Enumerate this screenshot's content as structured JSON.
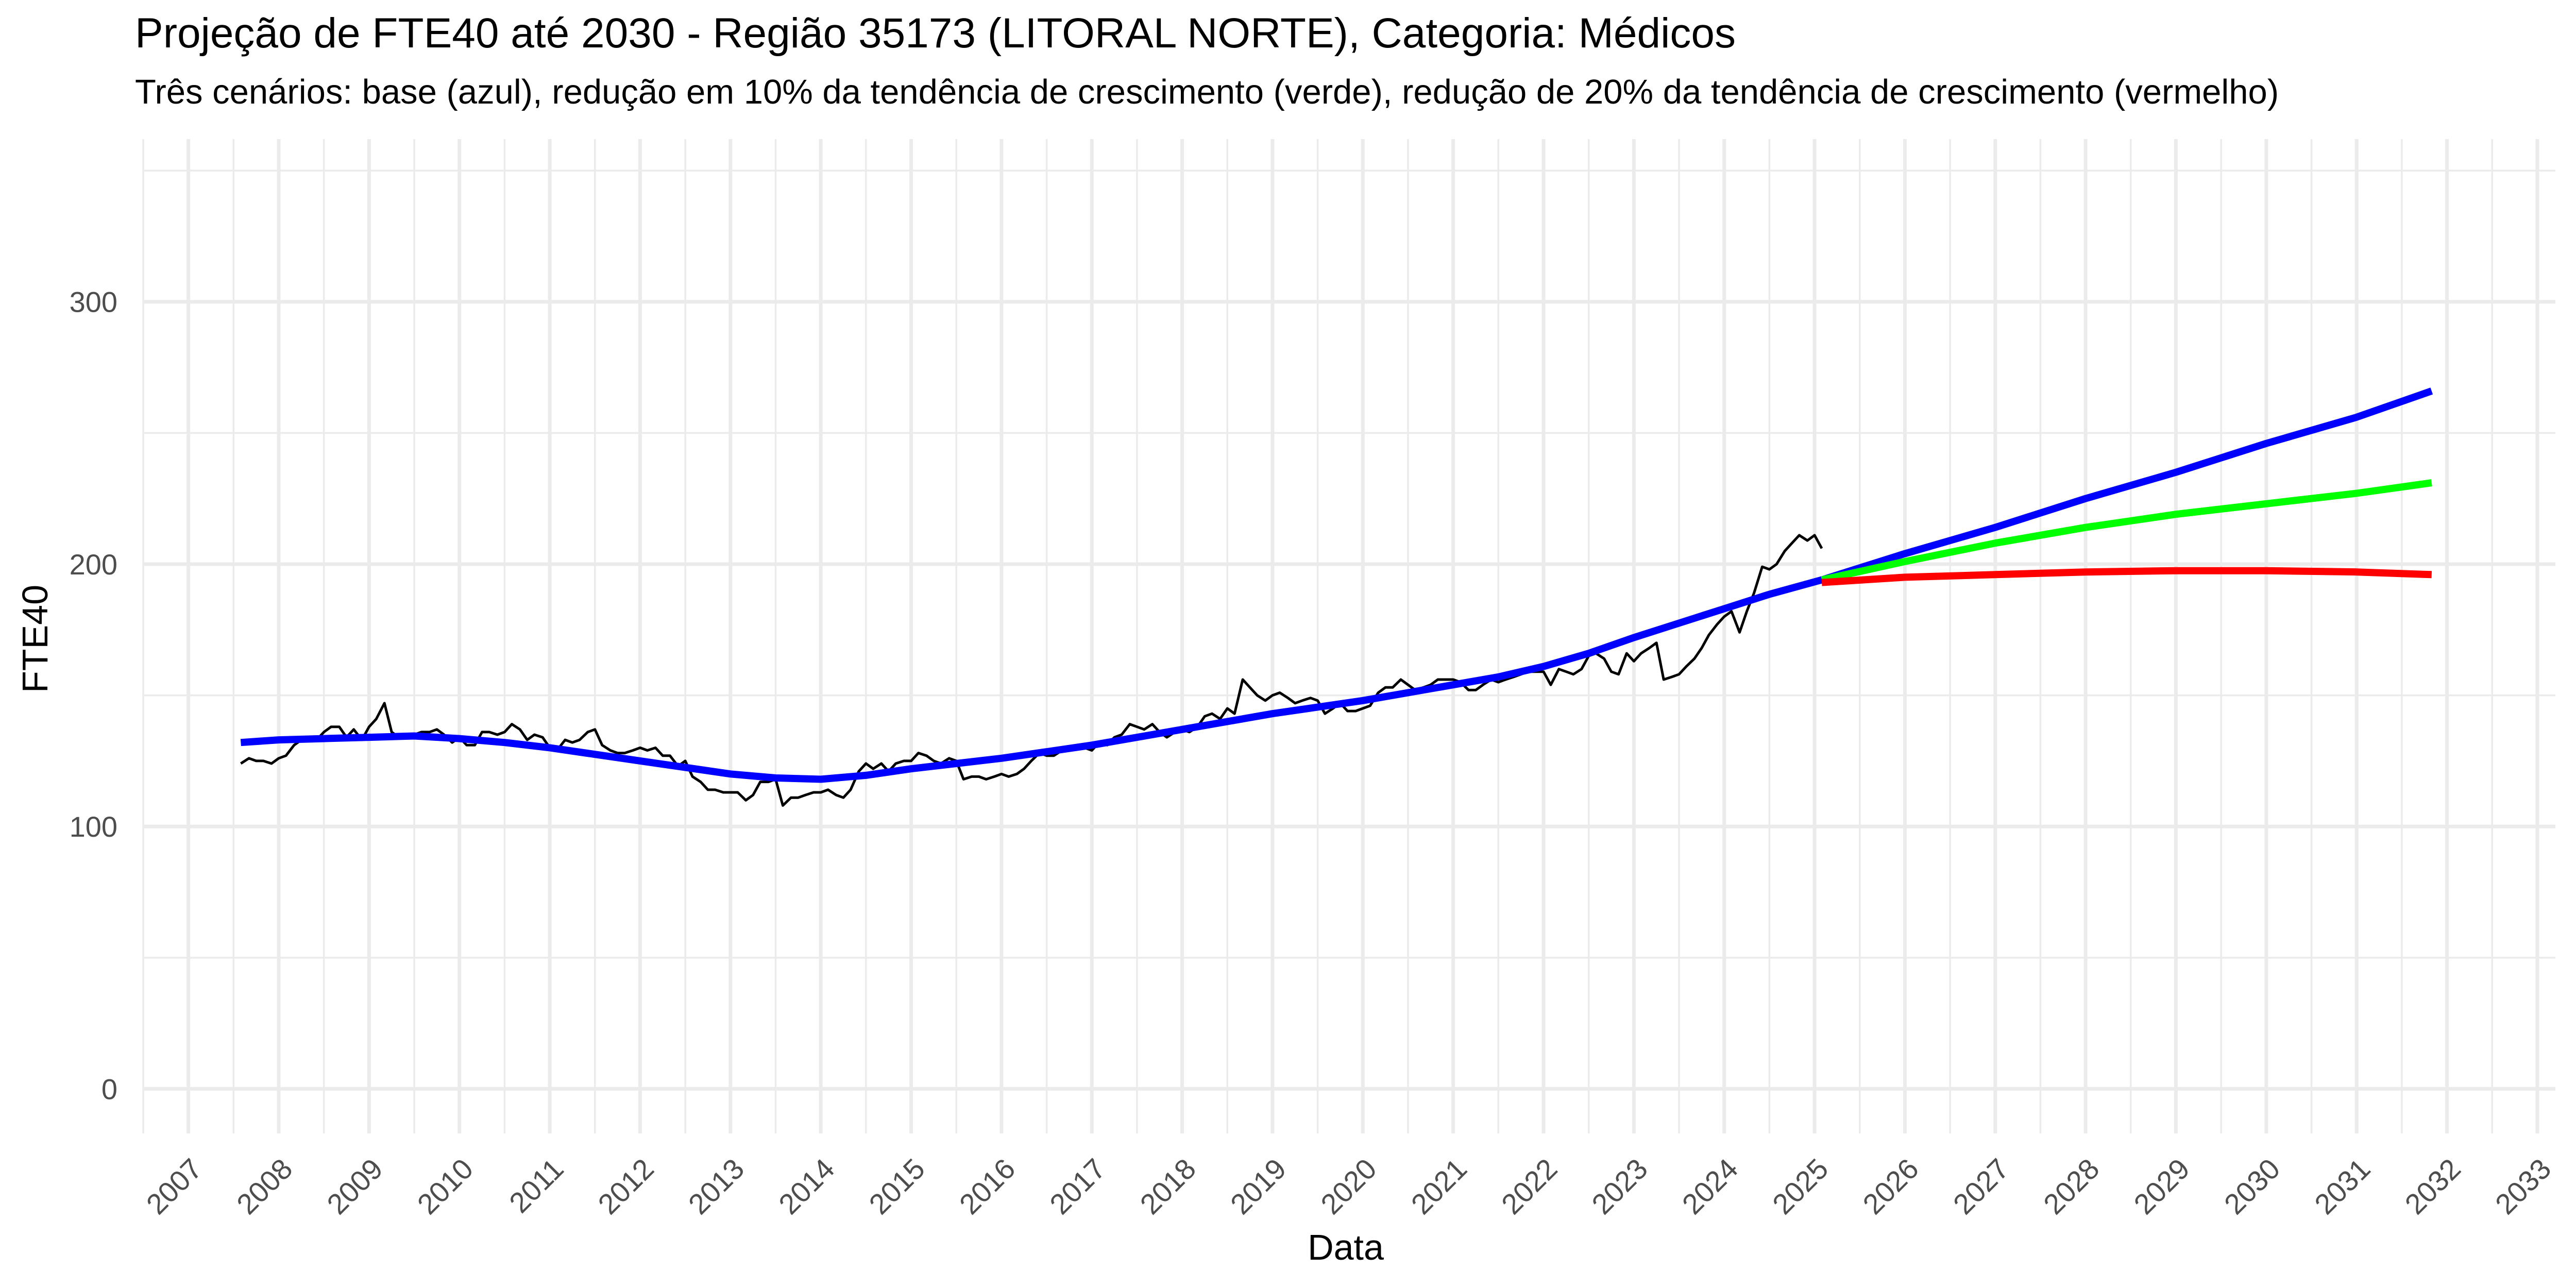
{
  "chart_data": {
    "type": "line",
    "title": "Projeção de FTE40 até 2030 - Região 35173 (LITORAL NORTE), Categoria: Médicos",
    "subtitle": "Três cenários: base (azul), redução em 10% da tendência de crescimento (verde), redução de 20% da tendência de crescimento (vermelho)",
    "xlabel": "Data",
    "ylabel": "FTE40",
    "x_ticks": [
      "2007",
      "2008",
      "2009",
      "2010",
      "2011",
      "2012",
      "2013",
      "2014",
      "2015",
      "2016",
      "2017",
      "2018",
      "2019",
      "2020",
      "2021",
      "2022",
      "2023",
      "2024",
      "2025",
      "2026",
      "2027",
      "2028",
      "2029",
      "2030",
      "2031",
      "2032",
      "2033"
    ],
    "y_ticks": [
      "0",
      "100",
      "200",
      "300"
    ],
    "xlim": [
      2006.5,
      2033.2
    ],
    "ylim": [
      -17,
      362
    ],
    "grid": true,
    "legend": "none",
    "colors": {
      "observed": "#000000",
      "base": "#0000ff",
      "reduction_10": "#00ff00",
      "reduction_20": "#ff0000",
      "grid": "#ebebeb"
    },
    "series": [
      {
        "key": "observed",
        "width": 5,
        "points": [
          [
            2007.58,
            124
          ],
          [
            2007.67,
            126
          ],
          [
            2007.75,
            125
          ],
          [
            2007.83,
            125
          ],
          [
            2007.92,
            124
          ],
          [
            2008.0,
            126
          ],
          [
            2008.08,
            127
          ],
          [
            2008.17,
            131
          ],
          [
            2008.25,
            133
          ],
          [
            2008.33,
            134
          ],
          [
            2008.42,
            133
          ],
          [
            2008.5,
            136
          ],
          [
            2008.58,
            138
          ],
          [
            2008.67,
            138
          ],
          [
            2008.75,
            134
          ],
          [
            2008.83,
            137
          ],
          [
            2008.92,
            133
          ],
          [
            2009.0,
            138
          ],
          [
            2009.08,
            141
          ],
          [
            2009.17,
            147
          ],
          [
            2009.25,
            136
          ],
          [
            2009.33,
            134
          ],
          [
            2009.42,
            135
          ],
          [
            2009.5,
            135
          ],
          [
            2009.58,
            136
          ],
          [
            2009.67,
            136
          ],
          [
            2009.75,
            137
          ],
          [
            2009.83,
            135
          ],
          [
            2009.92,
            132
          ],
          [
            2010.0,
            134
          ],
          [
            2010.08,
            131
          ],
          [
            2010.17,
            131
          ],
          [
            2010.25,
            136
          ],
          [
            2010.33,
            136
          ],
          [
            2010.42,
            135
          ],
          [
            2010.5,
            136
          ],
          [
            2010.58,
            139
          ],
          [
            2010.67,
            137
          ],
          [
            2010.75,
            133
          ],
          [
            2010.83,
            135
          ],
          [
            2010.92,
            134
          ],
          [
            2011.0,
            130
          ],
          [
            2011.08,
            129
          ],
          [
            2011.17,
            133
          ],
          [
            2011.25,
            132
          ],
          [
            2011.33,
            133
          ],
          [
            2011.42,
            136
          ],
          [
            2011.5,
            137
          ],
          [
            2011.58,
            131
          ],
          [
            2011.67,
            129
          ],
          [
            2011.75,
            128
          ],
          [
            2011.83,
            128
          ],
          [
            2011.92,
            129
          ],
          [
            2012.0,
            130
          ],
          [
            2012.08,
            129
          ],
          [
            2012.17,
            130
          ],
          [
            2012.25,
            127
          ],
          [
            2012.33,
            127
          ],
          [
            2012.42,
            123
          ],
          [
            2012.5,
            125
          ],
          [
            2012.58,
            119
          ],
          [
            2012.67,
            117
          ],
          [
            2012.75,
            114
          ],
          [
            2012.83,
            114
          ],
          [
            2012.92,
            113
          ],
          [
            2013.0,
            113
          ],
          [
            2013.08,
            113
          ],
          [
            2013.17,
            110
          ],
          [
            2013.25,
            112
          ],
          [
            2013.33,
            117
          ],
          [
            2013.42,
            117
          ],
          [
            2013.5,
            118
          ],
          [
            2013.58,
            108
          ],
          [
            2013.67,
            111
          ],
          [
            2013.75,
            111
          ],
          [
            2013.83,
            112
          ],
          [
            2013.92,
            113
          ],
          [
            2014.0,
            113
          ],
          [
            2014.08,
            114
          ],
          [
            2014.17,
            112
          ],
          [
            2014.25,
            111
          ],
          [
            2014.33,
            114
          ],
          [
            2014.42,
            121
          ],
          [
            2014.5,
            124
          ],
          [
            2014.58,
            122
          ],
          [
            2014.67,
            124
          ],
          [
            2014.75,
            121
          ],
          [
            2014.83,
            124
          ],
          [
            2014.92,
            125
          ],
          [
            2015.0,
            125
          ],
          [
            2015.08,
            128
          ],
          [
            2015.17,
            127
          ],
          [
            2015.25,
            125
          ],
          [
            2015.33,
            124
          ],
          [
            2015.42,
            126
          ],
          [
            2015.5,
            125
          ],
          [
            2015.58,
            118
          ],
          [
            2015.67,
            119
          ],
          [
            2015.75,
            119
          ],
          [
            2015.83,
            118
          ],
          [
            2015.92,
            119
          ],
          [
            2016.0,
            120
          ],
          [
            2016.08,
            119
          ],
          [
            2016.17,
            120
          ],
          [
            2016.25,
            122
          ],
          [
            2016.33,
            125
          ],
          [
            2016.42,
            128
          ],
          [
            2016.5,
            127
          ],
          [
            2016.58,
            127
          ],
          [
            2016.67,
            129
          ],
          [
            2016.75,
            129
          ],
          [
            2016.83,
            130
          ],
          [
            2016.92,
            130
          ],
          [
            2017.0,
            129
          ],
          [
            2017.08,
            132
          ],
          [
            2017.17,
            131
          ],
          [
            2017.25,
            134
          ],
          [
            2017.33,
            135
          ],
          [
            2017.42,
            139
          ],
          [
            2017.5,
            138
          ],
          [
            2017.58,
            137
          ],
          [
            2017.67,
            139
          ],
          [
            2017.75,
            136
          ],
          [
            2017.83,
            134
          ],
          [
            2017.92,
            136
          ],
          [
            2018.0,
            137
          ],
          [
            2018.08,
            136
          ],
          [
            2018.17,
            138
          ],
          [
            2018.25,
            142
          ],
          [
            2018.33,
            143
          ],
          [
            2018.42,
            141
          ],
          [
            2018.5,
            145
          ],
          [
            2018.58,
            143
          ],
          [
            2018.67,
            156
          ],
          [
            2018.75,
            153
          ],
          [
            2018.83,
            150
          ],
          [
            2018.92,
            148
          ],
          [
            2019.0,
            150
          ],
          [
            2019.08,
            151
          ],
          [
            2019.17,
            149
          ],
          [
            2019.25,
            147
          ],
          [
            2019.33,
            148
          ],
          [
            2019.42,
            149
          ],
          [
            2019.5,
            148
          ],
          [
            2019.58,
            143
          ],
          [
            2019.67,
            145
          ],
          [
            2019.75,
            147
          ],
          [
            2019.83,
            144
          ],
          [
            2019.92,
            144
          ],
          [
            2020.0,
            145
          ],
          [
            2020.08,
            146
          ],
          [
            2020.17,
            151
          ],
          [
            2020.25,
            153
          ],
          [
            2020.33,
            153
          ],
          [
            2020.42,
            156
          ],
          [
            2020.5,
            154
          ],
          [
            2020.58,
            152
          ],
          [
            2020.67,
            153
          ],
          [
            2020.75,
            154
          ],
          [
            2020.83,
            156
          ],
          [
            2020.92,
            156
          ],
          [
            2021.0,
            156
          ],
          [
            2021.08,
            155
          ],
          [
            2021.17,
            152
          ],
          [
            2021.25,
            152
          ],
          [
            2021.33,
            154
          ],
          [
            2021.42,
            156
          ],
          [
            2021.5,
            155
          ],
          [
            2021.58,
            156
          ],
          [
            2021.67,
            157
          ],
          [
            2021.75,
            158
          ],
          [
            2021.83,
            159
          ],
          [
            2021.92,
            159
          ],
          [
            2022.0,
            159
          ],
          [
            2022.08,
            154
          ],
          [
            2022.17,
            160
          ],
          [
            2022.25,
            159
          ],
          [
            2022.33,
            158
          ],
          [
            2022.42,
            160
          ],
          [
            2022.5,
            165
          ],
          [
            2022.58,
            166
          ],
          [
            2022.67,
            164
          ],
          [
            2022.75,
            159
          ],
          [
            2022.83,
            158
          ],
          [
            2022.92,
            166
          ],
          [
            2023.0,
            163
          ],
          [
            2023.08,
            166
          ],
          [
            2023.17,
            168
          ],
          [
            2023.25,
            170
          ],
          [
            2023.33,
            156
          ],
          [
            2023.42,
            157
          ],
          [
            2023.5,
            158
          ],
          [
            2023.58,
            161
          ],
          [
            2023.67,
            164
          ],
          [
            2023.75,
            168
          ],
          [
            2023.83,
            173
          ],
          [
            2023.92,
            177
          ],
          [
            2024.0,
            180
          ],
          [
            2024.08,
            182
          ],
          [
            2024.17,
            174
          ],
          [
            2024.25,
            182
          ],
          [
            2024.33,
            189
          ],
          [
            2024.42,
            199
          ],
          [
            2024.5,
            198
          ],
          [
            2024.58,
            200
          ],
          [
            2024.67,
            205
          ],
          [
            2024.75,
            208
          ],
          [
            2024.83,
            211
          ],
          [
            2024.92,
            209
          ],
          [
            2025.0,
            211
          ],
          [
            2025.08,
            206
          ]
        ]
      },
      {
        "key": "base",
        "width": 14,
        "points": [
          [
            2007.58,
            132
          ],
          [
            2008.0,
            133
          ],
          [
            2008.5,
            133.5
          ],
          [
            2009.0,
            134
          ],
          [
            2009.5,
            134.5
          ],
          [
            2010.0,
            133.5
          ],
          [
            2010.5,
            132
          ],
          [
            2011.0,
            130
          ],
          [
            2011.5,
            127.5
          ],
          [
            2012.0,
            125
          ],
          [
            2012.5,
            122.5
          ],
          [
            2013.0,
            120
          ],
          [
            2013.5,
            118.5
          ],
          [
            2014.0,
            118
          ],
          [
            2014.5,
            119.5
          ],
          [
            2015.0,
            122
          ],
          [
            2015.5,
            124
          ],
          [
            2016.0,
            126
          ],
          [
            2016.5,
            128.5
          ],
          [
            2017.0,
            131
          ],
          [
            2017.5,
            134
          ],
          [
            2018.0,
            137
          ],
          [
            2018.5,
            140
          ],
          [
            2019.0,
            143
          ],
          [
            2019.5,
            145.5
          ],
          [
            2020.0,
            148
          ],
          [
            2020.5,
            151
          ],
          [
            2021.0,
            154
          ],
          [
            2021.5,
            157
          ],
          [
            2022.0,
            161
          ],
          [
            2022.5,
            166
          ],
          [
            2023.0,
            172
          ],
          [
            2023.5,
            177.5
          ],
          [
            2024.0,
            183
          ],
          [
            2024.5,
            188.5
          ],
          [
            2025.08,
            194
          ],
          [
            2026.0,
            204
          ],
          [
            2027.0,
            214
          ],
          [
            2028.0,
            225
          ],
          [
            2029.0,
            235
          ],
          [
            2030.0,
            246
          ],
          [
            2031.0,
            256
          ],
          [
            2031.83,
            266
          ]
        ]
      },
      {
        "key": "reduction_10",
        "width": 14,
        "points": [
          [
            2025.08,
            194
          ],
          [
            2026.0,
            201
          ],
          [
            2027.0,
            208
          ],
          [
            2028.0,
            214
          ],
          [
            2029.0,
            219
          ],
          [
            2030.0,
            223
          ],
          [
            2031.0,
            227
          ],
          [
            2031.83,
            231
          ]
        ]
      },
      {
        "key": "reduction_20",
        "width": 14,
        "points": [
          [
            2025.08,
            193
          ],
          [
            2026.0,
            195
          ],
          [
            2027.0,
            196
          ],
          [
            2028.0,
            197
          ],
          [
            2029.0,
            197.5
          ],
          [
            2030.0,
            197.5
          ],
          [
            2031.0,
            197
          ],
          [
            2031.83,
            196
          ]
        ]
      }
    ]
  }
}
